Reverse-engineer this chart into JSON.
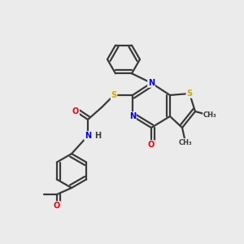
{
  "bg_color": "#ebebeb",
  "bond_color": "#3a3a3a",
  "bond_width": 1.6,
  "atom_colors": {
    "N": "#0000ee",
    "O": "#ee0000",
    "S": "#ccaa00",
    "C": "#3a3a3a",
    "H": "#3a3a3a"
  },
  "font_size": 7.0
}
